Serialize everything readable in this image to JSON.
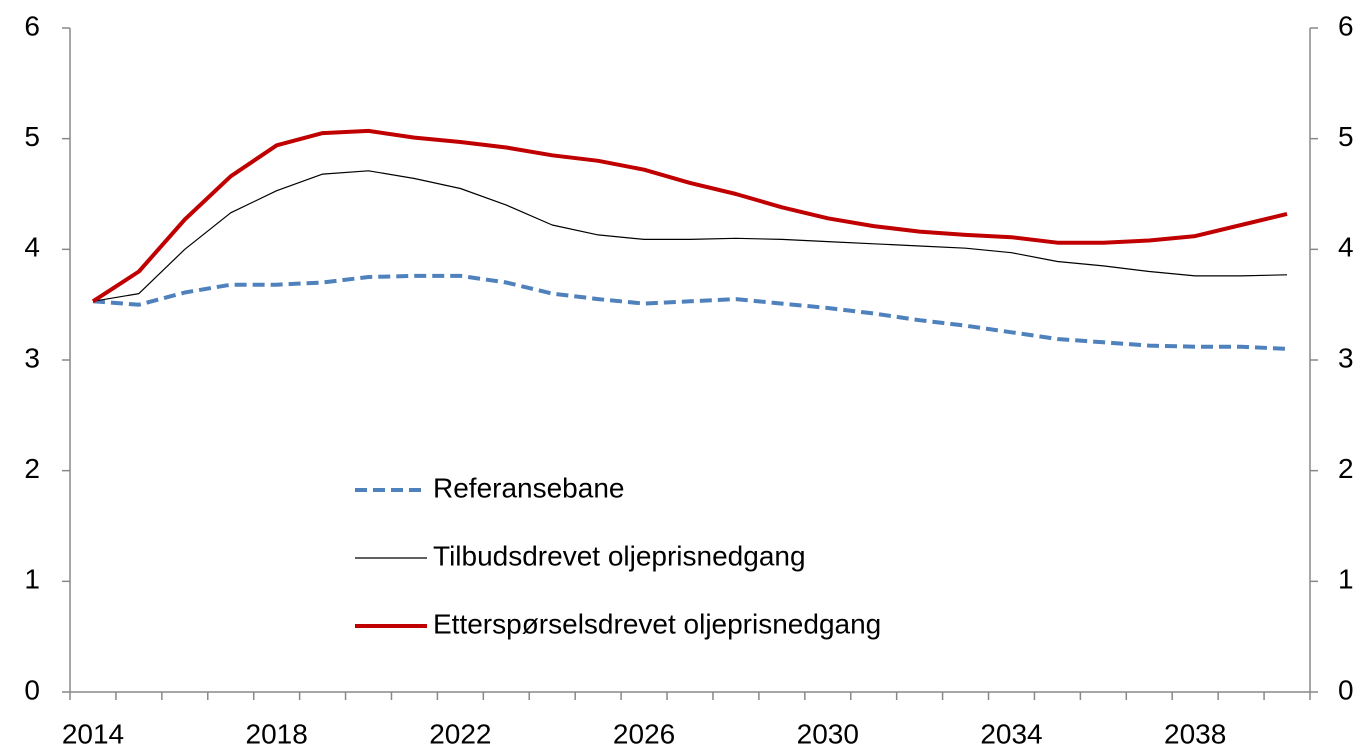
{
  "chart_data": {
    "type": "line",
    "categories": [
      "2014",
      null,
      null,
      null,
      "2018",
      null,
      null,
      null,
      "2022",
      null,
      null,
      null,
      "2026",
      null,
      null,
      null,
      "2030",
      null,
      null,
      null,
      "2034",
      null,
      null,
      null,
      "2038",
      null,
      null
    ],
    "series": [
      {
        "name": "Referansebane",
        "color": "#4f81bd",
        "style": "dashed",
        "width": 4,
        "values": [
          3.53,
          3.5,
          3.61,
          3.68,
          3.68,
          3.7,
          3.75,
          3.76,
          3.76,
          3.7,
          3.6,
          3.55,
          3.51,
          3.53,
          3.55,
          3.51,
          3.47,
          3.42,
          3.36,
          3.31,
          3.25,
          3.19,
          3.16,
          3.13,
          3.12,
          3.12,
          3.1
        ]
      },
      {
        "name": "Tilbudsdrevet oljeprisnedgang",
        "color": "#000000",
        "style": "solid",
        "width": 1.2,
        "values": [
          3.53,
          3.6,
          4.0,
          4.33,
          4.53,
          4.68,
          4.71,
          4.64,
          4.55,
          4.4,
          4.22,
          4.13,
          4.09,
          4.09,
          4.1,
          4.09,
          4.07,
          4.05,
          4.03,
          4.01,
          3.97,
          3.89,
          3.85,
          3.8,
          3.76,
          3.76,
          3.77
        ]
      },
      {
        "name": "Etterspørselsdrevet oljeprisnedgang",
        "color": "#c00000",
        "style": "solid",
        "width": 4,
        "values": [
          3.53,
          3.8,
          4.27,
          4.66,
          4.94,
          5.05,
          5.07,
          5.01,
          4.97,
          4.92,
          4.85,
          4.8,
          4.72,
          4.6,
          4.5,
          4.38,
          4.28,
          4.21,
          4.16,
          4.13,
          4.11,
          4.06,
          4.06,
          4.08,
          4.12,
          4.22,
          4.32
        ]
      }
    ],
    "ylim": [
      0,
      6
    ],
    "yticks": [
      0,
      1,
      2,
      3,
      4,
      5,
      6
    ],
    "y2lim": [
      0,
      6
    ],
    "y2ticks": [
      0,
      1,
      2,
      3,
      4,
      5,
      6
    ],
    "grid": false,
    "legend": "center"
  }
}
